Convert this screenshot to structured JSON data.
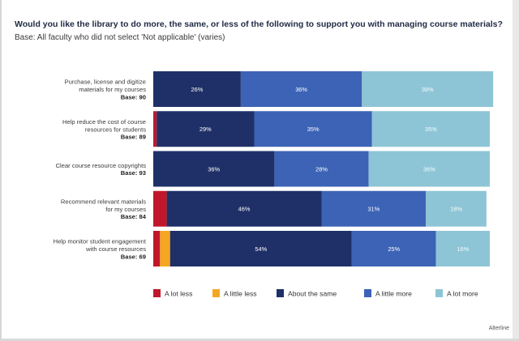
{
  "title": "Would you like the library to do more, the same, or less of the following to support you with managing course materials?",
  "subtitle": "Base: All faculty who did not select 'Not applicable' (varies)",
  "source": "Alterline",
  "colors": {
    "A lot less": "#c0182a",
    "A little less": "#f5a623",
    "About the same": "#1f3068",
    "A little more": "#3c63b5",
    "A lot more": "#8ec5d6"
  },
  "chart_data": {
    "type": "bar",
    "orientation": "horizontal",
    "stacked": true,
    "percent_scale": [
      0,
      100
    ],
    "categories": [
      {
        "label_lines": [
          "Purchase, license and digitize",
          "materials for my courses"
        ],
        "base": "Base: 90"
      },
      {
        "label_lines": [
          "Help reduce the cost of course",
          "resources for students"
        ],
        "base": "Base: 89"
      },
      {
        "label_lines": [
          "Clear course resource copyrights"
        ],
        "base": "Base: 93"
      },
      {
        "label_lines": [
          "Recommend relevant materials",
          "for my courses"
        ],
        "base": "Base: 84"
      },
      {
        "label_lines": [
          "Help monitor student engagement",
          "with course resources"
        ],
        "base": "Base: 69"
      }
    ],
    "series": [
      {
        "name": "A lot less",
        "values": [
          0,
          1,
          0,
          4,
          2
        ],
        "labels": [
          "",
          "",
          "",
          "",
          ""
        ]
      },
      {
        "name": "A little less",
        "values": [
          0,
          0,
          0,
          0,
          3
        ],
        "labels": [
          "",
          "",
          "",
          "",
          ""
        ]
      },
      {
        "name": "About the same",
        "values": [
          26,
          29,
          36,
          46,
          54
        ],
        "labels": [
          "26%",
          "29%",
          "36%",
          "46%",
          "54%"
        ]
      },
      {
        "name": "A little more",
        "values": [
          36,
          35,
          28,
          31,
          25
        ],
        "labels": [
          "36%",
          "35%",
          "28%",
          "31%",
          "25%"
        ]
      },
      {
        "name": "A lot more",
        "values": [
          39,
          35,
          36,
          18,
          16
        ],
        "labels": [
          "39%",
          "35%",
          "36%",
          "18%",
          "16%"
        ]
      }
    ],
    "legend": [
      "A lot less",
      "A little less",
      "About the same",
      "A little more",
      "A lot more"
    ],
    "legend_position": "bottom"
  }
}
